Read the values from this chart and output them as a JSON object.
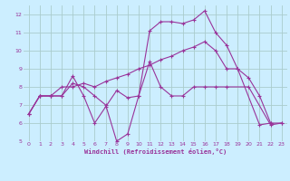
{
  "xlabel": "Windchill (Refroidissement éolien,°C)",
  "bg_color": "#cceeff",
  "grid_color": "#aacccc",
  "line_color": "#993399",
  "xlim": [
    -0.5,
    23.5
  ],
  "ylim": [
    5,
    12.5
  ],
  "yticks": [
    5,
    6,
    7,
    8,
    9,
    10,
    11,
    12
  ],
  "xticks": [
    0,
    1,
    2,
    3,
    4,
    5,
    6,
    7,
    8,
    9,
    10,
    11,
    12,
    13,
    14,
    15,
    16,
    17,
    18,
    19,
    20,
    21,
    22,
    23
  ],
  "series": [
    {
      "x": [
        0,
        1,
        2,
        3,
        4,
        5,
        6,
        7,
        8,
        9,
        10,
        11,
        12,
        13,
        14,
        15,
        16,
        17,
        18,
        19,
        20,
        21,
        22
      ],
      "y": [
        6.5,
        7.5,
        7.5,
        7.5,
        8.6,
        7.5,
        6.0,
        6.9,
        7.8,
        7.4,
        7.5,
        11.1,
        11.6,
        11.6,
        11.5,
        11.7,
        12.2,
        11.0,
        10.3,
        9.0,
        null,
        5.9,
        6.0
      ]
    },
    {
      "x": [
        0,
        1,
        2,
        3,
        4,
        5,
        6,
        7,
        8,
        9,
        10,
        11,
        12,
        13,
        14,
        15,
        16,
        17,
        18,
        20,
        21,
        22,
        23
      ],
      "y": [
        6.5,
        7.5,
        7.5,
        7.5,
        8.2,
        8.0,
        7.5,
        7.0,
        5.0,
        5.4,
        7.5,
        9.4,
        8.0,
        7.5,
        7.5,
        8.0,
        8.0,
        8.0,
        8.0,
        8.0,
        null,
        5.9,
        6.0
      ]
    },
    {
      "x": [
        0,
        1,
        2,
        3,
        4,
        5,
        6,
        7,
        8,
        9,
        10,
        11,
        12,
        13,
        14,
        15,
        16,
        17,
        18,
        19,
        20,
        21,
        22,
        23
      ],
      "y": [
        6.5,
        7.5,
        7.5,
        8.0,
        8.0,
        8.2,
        8.0,
        8.3,
        8.5,
        8.7,
        9.0,
        9.2,
        9.5,
        9.7,
        10.0,
        10.2,
        10.5,
        10.0,
        9.0,
        9.0,
        8.5,
        7.5,
        6.0,
        6.0
      ]
    }
  ]
}
